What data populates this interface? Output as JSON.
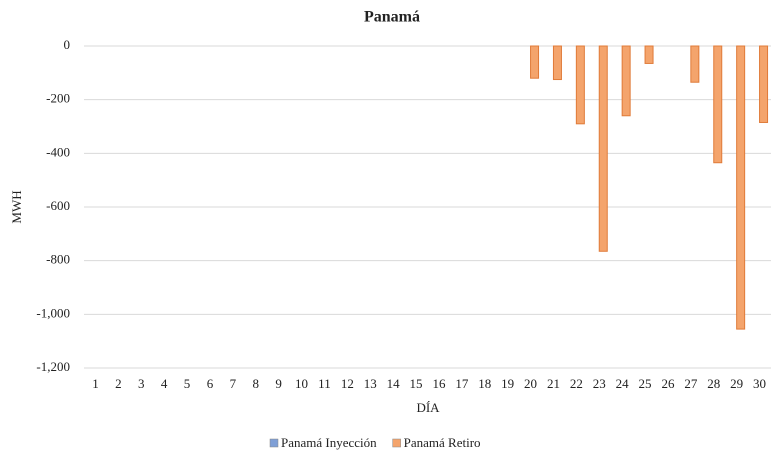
{
  "chart_data": {
    "type": "bar",
    "title": "Panamá",
    "x_label": "DÍA",
    "y_label": "MWH",
    "categories": [
      "1",
      "2",
      "3",
      "4",
      "5",
      "6",
      "7",
      "8",
      "9",
      "10",
      "11",
      "12",
      "13",
      "14",
      "15",
      "16",
      "17",
      "18",
      "19",
      "20",
      "21",
      "22",
      "23",
      "24",
      "25",
      "26",
      "27",
      "28",
      "29",
      "30"
    ],
    "series": [
      {
        "name": "Panamá Inyección",
        "color": "#7f9fd6",
        "values": [
          0,
          0,
          0,
          0,
          0,
          0,
          0,
          0,
          0,
          0,
          0,
          0,
          0,
          0,
          0,
          0,
          0,
          0,
          0,
          0,
          0,
          0,
          0,
          0,
          0,
          0,
          0,
          0,
          0,
          0
        ]
      },
      {
        "name": "Panamá Retiro",
        "color": "#f4a46c",
        "values": [
          0,
          0,
          0,
          0,
          0,
          0,
          0,
          0,
          0,
          0,
          0,
          0,
          0,
          0,
          0,
          0,
          0,
          0,
          0,
          -120,
          -125,
          -290,
          -765,
          -260,
          -65,
          0,
          -135,
          -435,
          -1055,
          -285
        ]
      }
    ],
    "ylim": [
      -1200,
      0
    ],
    "yticks": [
      0,
      -200,
      -400,
      -600,
      -800,
      {
        "value": -1000,
        "label": "-1,000"
      },
      {
        "value": -1200,
        "label": "-1,200"
      }
    ],
    "grid": true,
    "legend": "bottom"
  }
}
